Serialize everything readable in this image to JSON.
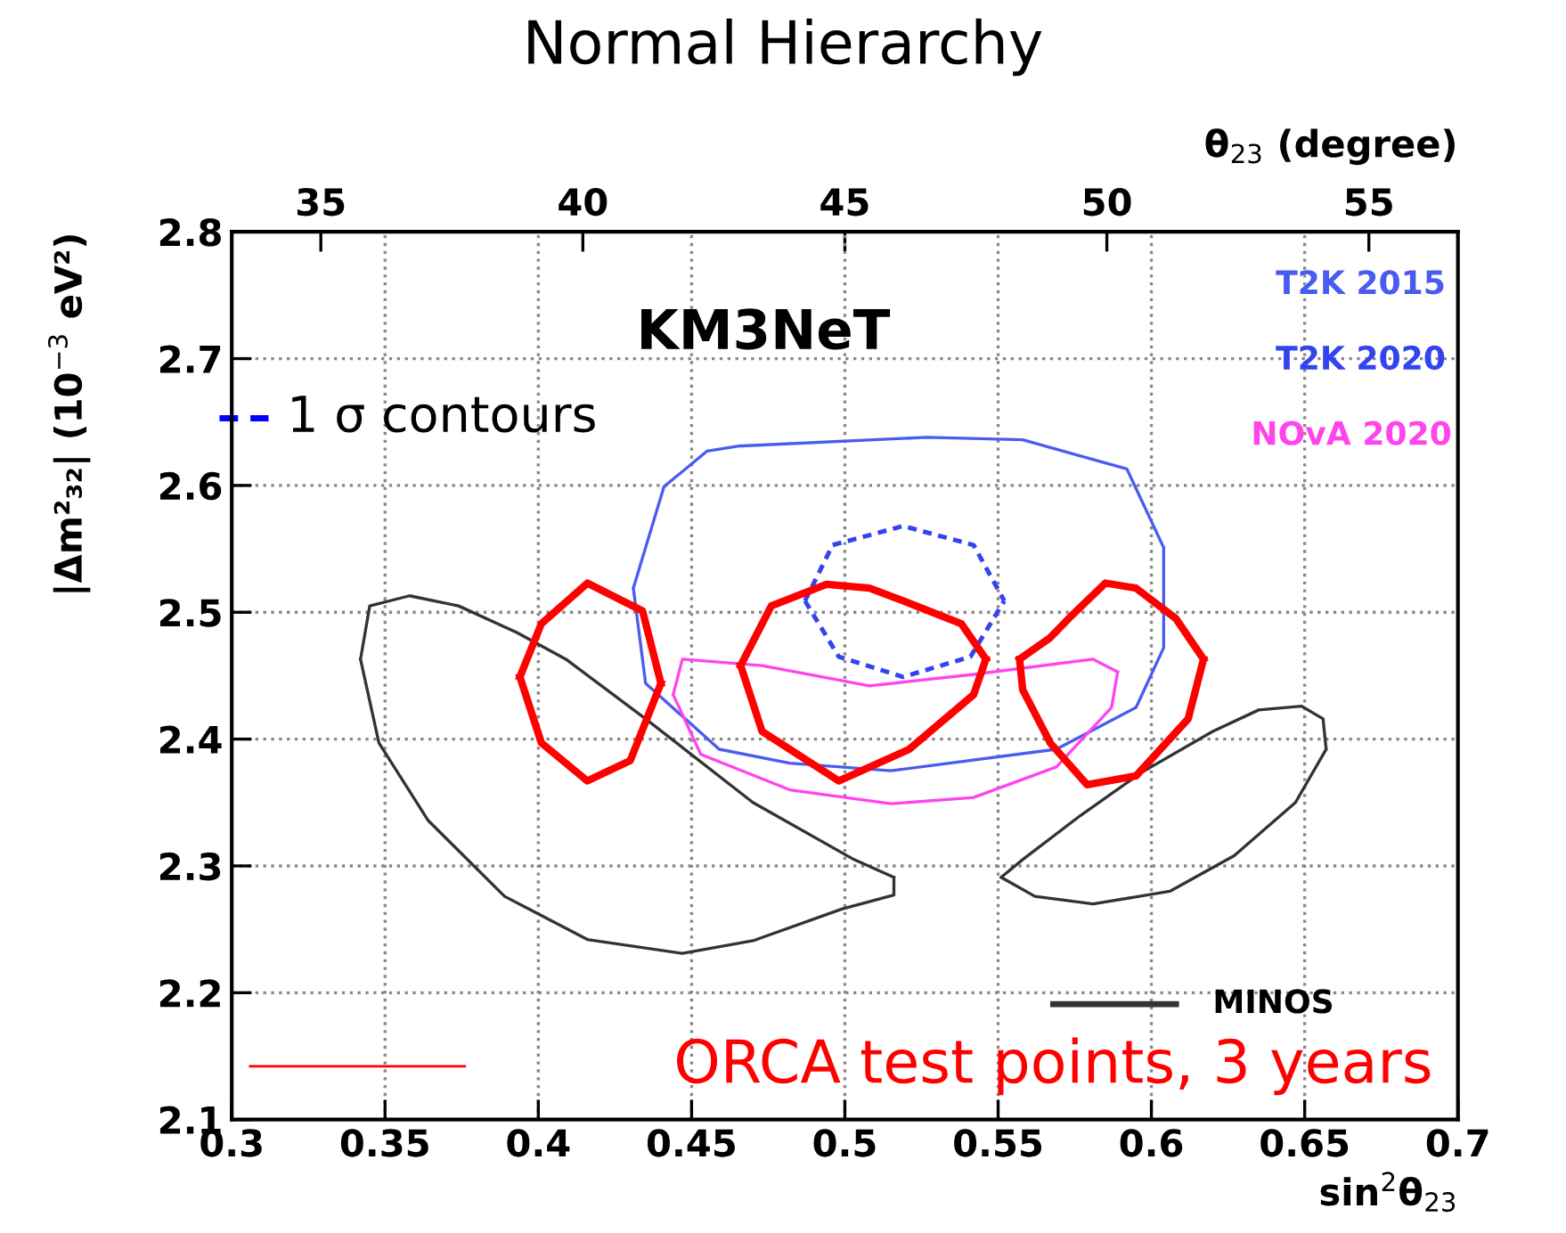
{
  "chart_data": {
    "type": "line",
    "title": "Normal Hierarchy",
    "xlabel": "sin$^{2}$θ$_{23}$",
    "ylabel": "|Δm²₃₂| (10$^{−3}$ eV²)",
    "x2label": "θ$_{23}$ (degree)",
    "xlim": [
      0.3,
      0.7
    ],
    "xticks": [
      0.3,
      0.35,
      0.4,
      0.45,
      0.5,
      0.55,
      0.6,
      0.65,
      0.7
    ],
    "ylim": [
      2.1,
      2.8
    ],
    "yticks": [
      2.1,
      2.2,
      2.3,
      2.4,
      2.5,
      2.6,
      2.7,
      2.8
    ],
    "x2lim": [
      33.3,
      56.7
    ],
    "x2ticks": [
      35,
      40,
      45,
      50,
      55
    ],
    "grid": true,
    "marker": "none",
    "annotations": [
      "KM3NeT",
      "1 σ contours"
    ],
    "series": [
      {
        "name": "T2K 2015",
        "color": "#4a5cf0",
        "line_style": "solid",
        "x": [
          0.431,
          0.441,
          0.455,
          0.465,
          0.527,
          0.558,
          0.592,
          0.604,
          null,
          0.431,
          0.435,
          0.459,
          0.482,
          0.515,
          0.569,
          0.595,
          0.604,
          0.604
        ],
        "values": [
          2.519,
          2.599,
          2.627,
          2.631,
          2.638,
          2.636,
          2.613,
          2.551,
          null,
          2.519,
          2.444,
          2.392,
          2.381,
          2.375,
          2.392,
          2.425,
          2.472,
          2.551
        ]
      },
      {
        "name": "T2K 2020",
        "color": "#3344ee",
        "line_style": "dashed",
        "x": [
          0.487,
          0.496,
          0.519,
          0.542,
          0.552,
          null,
          0.487,
          0.498,
          0.519,
          0.541,
          0.552
        ],
        "values": [
          2.509,
          2.553,
          2.568,
          2.553,
          2.509,
          null,
          2.509,
          2.465,
          2.449,
          2.465,
          2.509
        ]
      },
      {
        "name": "NOvA 2020",
        "color": "#ff44ee",
        "line_style": "solid",
        "x": [
          0.444,
          0.447,
          0.473,
          0.508,
          0.542,
          0.581,
          0.589,
          null,
          0.444,
          0.453,
          0.482,
          0.515,
          0.542,
          0.569,
          0.587,
          0.589
        ],
        "values": [
          2.435,
          2.463,
          2.458,
          2.442,
          2.451,
          2.463,
          2.453,
          null,
          2.435,
          2.388,
          2.36,
          2.349,
          2.354,
          2.378,
          2.425,
          2.453
        ]
      },
      {
        "name": "MINOS",
        "color": "#333333",
        "line_style": "solid",
        "x": [
          0.342,
          0.345,
          0.358,
          0.374,
          0.393,
          0.409,
          0.435,
          0.47,
          0.503,
          0.516,
          null,
          0.342,
          0.348,
          0.364,
          0.389,
          0.416,
          0.447,
          0.47,
          0.499,
          0.516,
          0.516,
          null,
          0.551,
          0.558,
          0.577,
          0.597,
          0.62,
          0.635,
          0.649,
          0.656,
          0.657,
          null,
          0.551,
          0.562,
          0.581,
          0.606,
          0.627,
          0.647,
          0.657
        ],
        "values": [
          2.463,
          2.505,
          2.513,
          2.505,
          2.484,
          2.463,
          2.416,
          2.35,
          2.305,
          2.291,
          null,
          2.463,
          2.397,
          2.336,
          2.276,
          2.242,
          2.231,
          2.241,
          2.266,
          2.277,
          2.291,
          null,
          2.291,
          2.305,
          2.34,
          2.374,
          2.406,
          2.423,
          2.426,
          2.416,
          2.392,
          null,
          2.291,
          2.276,
          2.27,
          2.28,
          2.308,
          2.35,
          2.392
        ]
      },
      {
        "name": "ORCA test points, 3 years",
        "color": "#ff0000",
        "line_style": "solid",
        "x": [
          0.394,
          0.401,
          0.416,
          0.434,
          0.44,
          null,
          0.394,
          0.401,
          0.416,
          0.43,
          0.44,
          null,
          0.466,
          0.476,
          0.494,
          0.508,
          0.519,
          0.538,
          0.546,
          null,
          0.466,
          0.473,
          0.498,
          0.521,
          0.542,
          0.546,
          null,
          0.557,
          0.567,
          0.573,
          0.585,
          0.595,
          0.608,
          0.617,
          null,
          0.557,
          0.558,
          0.567,
          0.579,
          0.595,
          0.612,
          0.617
        ],
        "values": [
          2.449,
          2.491,
          2.523,
          2.501,
          2.444,
          null,
          2.449,
          2.397,
          2.367,
          2.383,
          2.444,
          null,
          2.458,
          2.505,
          2.522,
          2.519,
          2.509,
          2.491,
          2.463,
          null,
          2.458,
          2.406,
          2.367,
          2.392,
          2.435,
          2.463,
          null,
          2.463,
          2.48,
          2.495,
          2.523,
          2.519,
          2.495,
          2.463,
          null,
          2.463,
          2.439,
          2.397,
          2.364,
          2.371,
          2.416,
          2.463
        ]
      }
    ]
  }
}
